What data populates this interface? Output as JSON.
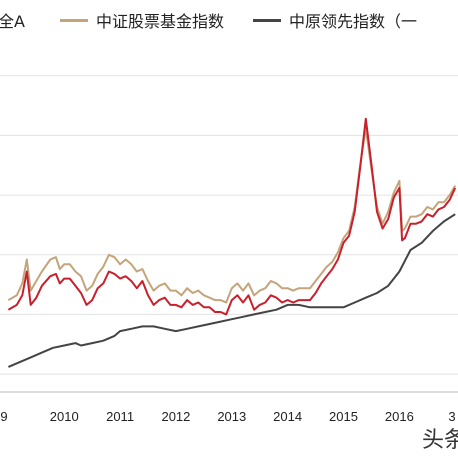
{
  "chart_data": {
    "type": "line",
    "title": "",
    "xlabel": "",
    "ylabel": "",
    "legend": {
      "placement": "top-left"
    },
    "grid": true,
    "x_ticks": [
      "9",
      "2010",
      "2011",
      "2012",
      "2013",
      "2014",
      "2015",
      "2016",
      "3"
    ],
    "series": [
      {
        "name": "全A",
        "color": "#c8202c",
        "values": [
          [
            2009.0,
            1.54
          ],
          [
            2009.15,
            1.58
          ],
          [
            2009.25,
            1.66
          ],
          [
            2009.33,
            1.86
          ],
          [
            2009.4,
            1.58
          ],
          [
            2009.5,
            1.64
          ],
          [
            2009.6,
            1.74
          ],
          [
            2009.75,
            1.82
          ],
          [
            2009.85,
            1.84
          ],
          [
            2009.92,
            1.76
          ],
          [
            2010.0,
            1.8
          ],
          [
            2010.1,
            1.8
          ],
          [
            2010.2,
            1.74
          ],
          [
            2010.3,
            1.68
          ],
          [
            2010.4,
            1.58
          ],
          [
            2010.5,
            1.62
          ],
          [
            2010.6,
            1.72
          ],
          [
            2010.7,
            1.76
          ],
          [
            2010.8,
            1.86
          ],
          [
            2010.9,
            1.84
          ],
          [
            2011.0,
            1.8
          ],
          [
            2011.1,
            1.82
          ],
          [
            2011.2,
            1.78
          ],
          [
            2011.3,
            1.72
          ],
          [
            2011.4,
            1.78
          ],
          [
            2011.5,
            1.66
          ],
          [
            2011.6,
            1.58
          ],
          [
            2011.7,
            1.62
          ],
          [
            2011.8,
            1.64
          ],
          [
            2011.9,
            1.58
          ],
          [
            2012.0,
            1.58
          ],
          [
            2012.1,
            1.56
          ],
          [
            2012.2,
            1.62
          ],
          [
            2012.3,
            1.58
          ],
          [
            2012.4,
            1.6
          ],
          [
            2012.5,
            1.56
          ],
          [
            2012.6,
            1.56
          ],
          [
            2012.7,
            1.52
          ],
          [
            2012.8,
            1.52
          ],
          [
            2012.9,
            1.5
          ],
          [
            2012.95,
            1.56
          ],
          [
            2013.0,
            1.62
          ],
          [
            2013.1,
            1.66
          ],
          [
            2013.2,
            1.6
          ],
          [
            2013.3,
            1.66
          ],
          [
            2013.4,
            1.54
          ],
          [
            2013.5,
            1.58
          ],
          [
            2013.6,
            1.6
          ],
          [
            2013.7,
            1.66
          ],
          [
            2013.8,
            1.64
          ],
          [
            2013.9,
            1.6
          ],
          [
            2014.0,
            1.62
          ],
          [
            2014.1,
            1.6
          ],
          [
            2014.2,
            1.62
          ],
          [
            2014.3,
            1.62
          ],
          [
            2014.4,
            1.62
          ],
          [
            2014.5,
            1.68
          ],
          [
            2014.6,
            1.76
          ],
          [
            2014.7,
            1.82
          ],
          [
            2014.8,
            1.88
          ],
          [
            2014.9,
            1.96
          ],
          [
            2015.0,
            2.1
          ],
          [
            2015.1,
            2.16
          ],
          [
            2015.2,
            2.36
          ],
          [
            2015.3,
            2.74
          ],
          [
            2015.4,
            3.14
          ],
          [
            2015.5,
            2.76
          ],
          [
            2015.6,
            2.36
          ],
          [
            2015.7,
            2.22
          ],
          [
            2015.8,
            2.3
          ],
          [
            2015.9,
            2.48
          ],
          [
            2016.0,
            2.56
          ],
          [
            2016.05,
            2.12
          ],
          [
            2016.1,
            2.14
          ],
          [
            2016.2,
            2.26
          ],
          [
            2016.3,
            2.26
          ],
          [
            2016.4,
            2.28
          ],
          [
            2016.5,
            2.34
          ],
          [
            2016.6,
            2.32
          ],
          [
            2016.7,
            2.38
          ],
          [
            2016.8,
            2.4
          ],
          [
            2016.9,
            2.46
          ],
          [
            2017.0,
            2.56
          ]
        ]
      },
      {
        "name": "中证股票基金指数",
        "color": "#c4a47a",
        "values": [
          [
            2009.0,
            1.62
          ],
          [
            2009.15,
            1.66
          ],
          [
            2009.25,
            1.76
          ],
          [
            2009.33,
            1.96
          ],
          [
            2009.4,
            1.7
          ],
          [
            2009.5,
            1.78
          ],
          [
            2009.6,
            1.86
          ],
          [
            2009.75,
            1.96
          ],
          [
            2009.85,
            1.98
          ],
          [
            2009.92,
            1.88
          ],
          [
            2010.0,
            1.92
          ],
          [
            2010.1,
            1.92
          ],
          [
            2010.2,
            1.86
          ],
          [
            2010.3,
            1.82
          ],
          [
            2010.4,
            1.7
          ],
          [
            2010.5,
            1.74
          ],
          [
            2010.6,
            1.84
          ],
          [
            2010.7,
            1.9
          ],
          [
            2010.8,
            2.0
          ],
          [
            2010.9,
            1.98
          ],
          [
            2011.0,
            1.92
          ],
          [
            2011.1,
            1.96
          ],
          [
            2011.2,
            1.92
          ],
          [
            2011.3,
            1.86
          ],
          [
            2011.4,
            1.88
          ],
          [
            2011.5,
            1.78
          ],
          [
            2011.6,
            1.7
          ],
          [
            2011.7,
            1.74
          ],
          [
            2011.8,
            1.76
          ],
          [
            2011.9,
            1.7
          ],
          [
            2012.0,
            1.7
          ],
          [
            2012.1,
            1.66
          ],
          [
            2012.2,
            1.72
          ],
          [
            2012.3,
            1.68
          ],
          [
            2012.4,
            1.7
          ],
          [
            2012.5,
            1.66
          ],
          [
            2012.6,
            1.64
          ],
          [
            2012.7,
            1.62
          ],
          [
            2012.8,
            1.62
          ],
          [
            2012.9,
            1.6
          ],
          [
            2012.95,
            1.66
          ],
          [
            2013.0,
            1.72
          ],
          [
            2013.1,
            1.76
          ],
          [
            2013.2,
            1.7
          ],
          [
            2013.3,
            1.76
          ],
          [
            2013.4,
            1.66
          ],
          [
            2013.5,
            1.7
          ],
          [
            2013.6,
            1.72
          ],
          [
            2013.7,
            1.78
          ],
          [
            2013.8,
            1.76
          ],
          [
            2013.9,
            1.72
          ],
          [
            2014.0,
            1.72
          ],
          [
            2014.1,
            1.7
          ],
          [
            2014.2,
            1.72
          ],
          [
            2014.3,
            1.72
          ],
          [
            2014.4,
            1.72
          ],
          [
            2014.5,
            1.78
          ],
          [
            2014.6,
            1.84
          ],
          [
            2014.7,
            1.9
          ],
          [
            2014.8,
            1.94
          ],
          [
            2014.9,
            2.02
          ],
          [
            2015.0,
            2.14
          ],
          [
            2015.1,
            2.2
          ],
          [
            2015.2,
            2.4
          ],
          [
            2015.3,
            2.76
          ],
          [
            2015.4,
            3.06
          ],
          [
            2015.5,
            2.72
          ],
          [
            2015.6,
            2.4
          ],
          [
            2015.7,
            2.26
          ],
          [
            2015.8,
            2.36
          ],
          [
            2015.9,
            2.52
          ],
          [
            2016.0,
            2.62
          ],
          [
            2016.05,
            2.2
          ],
          [
            2016.1,
            2.22
          ],
          [
            2016.2,
            2.32
          ],
          [
            2016.3,
            2.32
          ],
          [
            2016.4,
            2.34
          ],
          [
            2016.5,
            2.4
          ],
          [
            2016.6,
            2.38
          ],
          [
            2016.7,
            2.44
          ],
          [
            2016.8,
            2.44
          ],
          [
            2016.9,
            2.5
          ],
          [
            2017.0,
            2.58
          ]
        ]
      },
      {
        "name": "中原领先指数（一",
        "color": "#444444",
        "values": [
          [
            2009.0,
            1.06
          ],
          [
            2009.2,
            1.1
          ],
          [
            2009.4,
            1.14
          ],
          [
            2009.6,
            1.18
          ],
          [
            2009.8,
            1.22
          ],
          [
            2010.0,
            1.24
          ],
          [
            2010.2,
            1.26
          ],
          [
            2010.3,
            1.24
          ],
          [
            2010.5,
            1.26
          ],
          [
            2010.7,
            1.28
          ],
          [
            2010.9,
            1.32
          ],
          [
            2011.0,
            1.36
          ],
          [
            2011.2,
            1.38
          ],
          [
            2011.4,
            1.4
          ],
          [
            2011.6,
            1.4
          ],
          [
            2011.8,
            1.38
          ],
          [
            2012.0,
            1.36
          ],
          [
            2012.2,
            1.38
          ],
          [
            2012.4,
            1.4
          ],
          [
            2012.6,
            1.42
          ],
          [
            2012.8,
            1.44
          ],
          [
            2013.0,
            1.46
          ],
          [
            2013.2,
            1.48
          ],
          [
            2013.4,
            1.5
          ],
          [
            2013.6,
            1.52
          ],
          [
            2013.8,
            1.54
          ],
          [
            2014.0,
            1.58
          ],
          [
            2014.2,
            1.58
          ],
          [
            2014.4,
            1.56
          ],
          [
            2014.6,
            1.56
          ],
          [
            2014.8,
            1.56
          ],
          [
            2015.0,
            1.56
          ],
          [
            2015.2,
            1.6
          ],
          [
            2015.4,
            1.64
          ],
          [
            2015.6,
            1.68
          ],
          [
            2015.8,
            1.74
          ],
          [
            2016.0,
            1.86
          ],
          [
            2016.2,
            2.04
          ],
          [
            2016.4,
            2.1
          ],
          [
            2016.6,
            2.2
          ],
          [
            2016.8,
            2.28
          ],
          [
            2017.0,
            2.34
          ]
        ]
      }
    ]
  },
  "watermark": "头条"
}
